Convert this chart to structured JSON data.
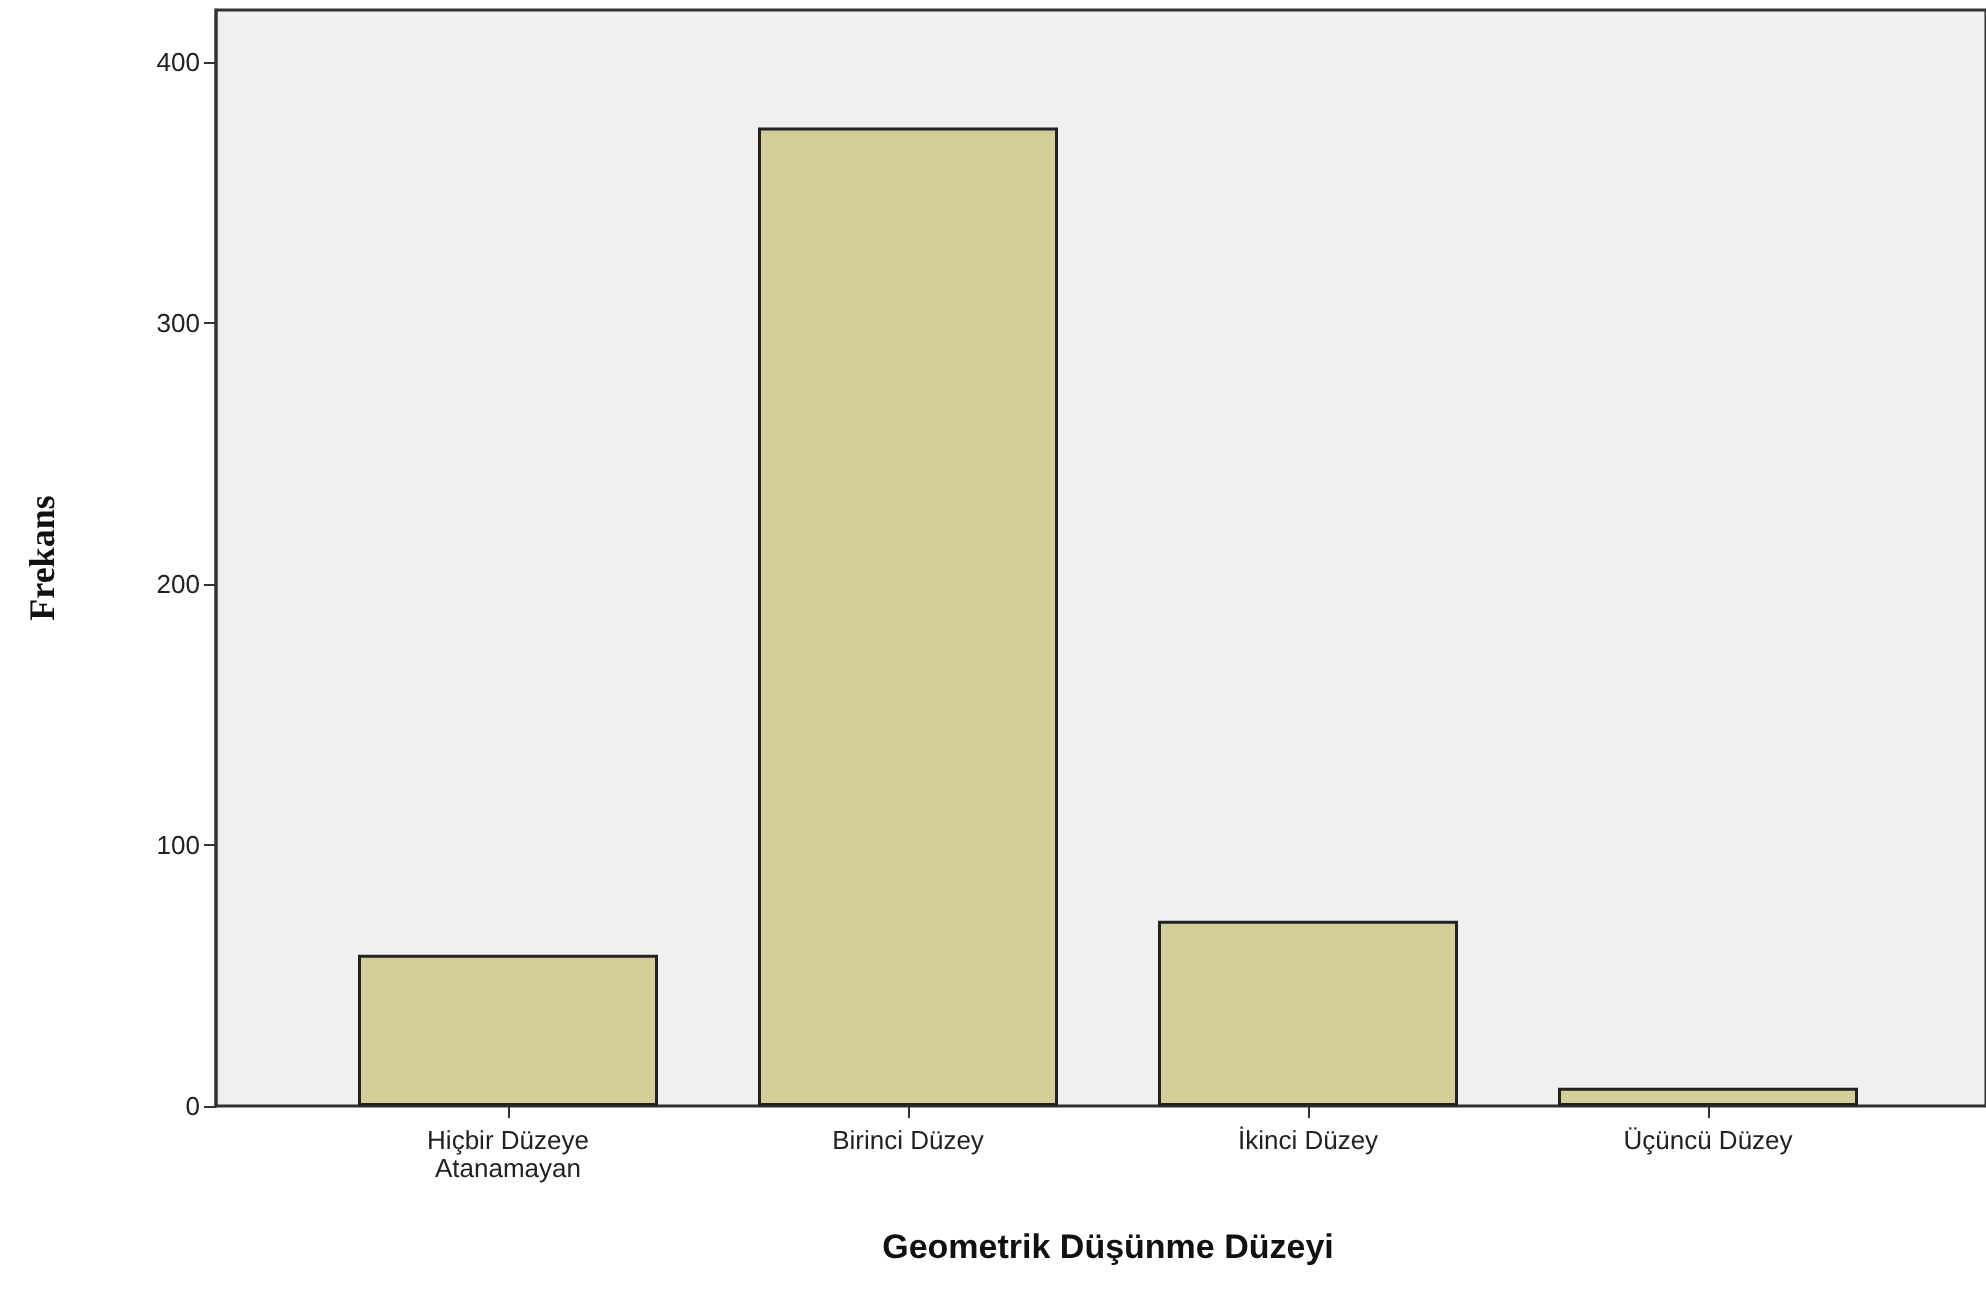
{
  "chart_data": {
    "type": "bar",
    "xlabel": "Geometrik Düşünme Düzeyi",
    "ylabel": "Frekans",
    "categories": [
      "Hiçbir Düzeye\nAtanamayan",
      "Birinci Düzey",
      "İkinci Düzey",
      "Üçüncü Düzey"
    ],
    "values": [
      58,
      375,
      71,
      7
    ],
    "color": "#d3ce97",
    "ylim": [
      0,
      420
    ],
    "yticks": [
      0,
      100,
      200,
      300,
      400
    ],
    "grid": false
  }
}
